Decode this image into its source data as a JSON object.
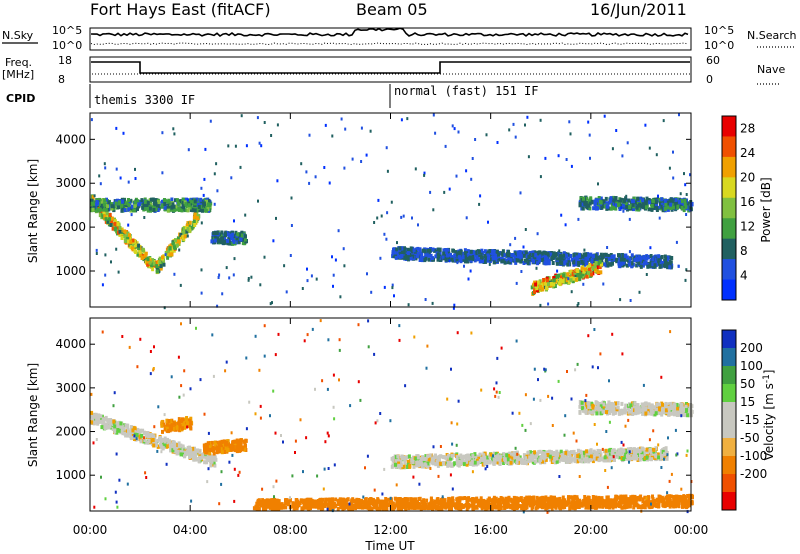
{
  "header": {
    "station": "Fort Hays East (fitACF)",
    "beam": "Beam 05",
    "date": "16/Jun/2011"
  },
  "top_panels": {
    "nsky_label": "N.Sky",
    "nsky_ticks": [
      "10^5",
      "10^0"
    ],
    "nsearch_label": "N.Search",
    "freq_label_line1": "Freq.",
    "freq_label_line2": "[MHz]",
    "freq_ticks": [
      "18",
      "8"
    ],
    "nave_label": "Nave",
    "nave_ticks": [
      "60",
      "0"
    ],
    "cpid_label": "CPID",
    "cpid_segments": [
      {
        "label": "themis 3300 IF",
        "start_hour": 0,
        "end_hour": 12
      },
      {
        "label": "normal (fast) 151 IF",
        "start_hour": 12,
        "end_hour": 24
      }
    ]
  },
  "chart_data": [
    {
      "type": "heatmap",
      "title": "",
      "xlabel": "Time UT",
      "ylabel": "Slant Range [km]",
      "xlim": [
        0,
        24
      ],
      "ylim": [
        180,
        4600
      ],
      "x_ticks": [
        "00:00",
        "04:00",
        "08:00",
        "12:00",
        "16:00",
        "20:00",
        "00:00"
      ],
      "y_ticks": [
        "1000",
        "2000",
        "3000",
        "4000"
      ],
      "colorbar": {
        "label": "Power [dB]",
        "ticks": [
          "28",
          "24",
          "20",
          "16",
          "12",
          "8",
          "4"
        ],
        "range": [
          0,
          30
        ],
        "colors": [
          "#0030ff",
          "#2050e0",
          "#206060",
          "#40a040",
          "#80c040",
          "#d8d820",
          "#f0a000",
          "#f05000",
          "#e80000"
        ]
      },
      "features": [
        {
          "name": "arc-descending",
          "from_hour": 0.0,
          "to_hour": 2.6,
          "range_km": [
            2600,
            1050
          ],
          "peak_db": 26
        },
        {
          "name": "arc-ascending",
          "from_hour": 2.6,
          "to_hour": 4.3,
          "range_km": [
            1050,
            2300
          ],
          "peak_db": 24
        },
        {
          "name": "upper-band-early",
          "from_hour": 0.0,
          "to_hour": 4.8,
          "range_km": [
            2500,
            2500
          ],
          "peak_db": 14
        },
        {
          "name": "mid-band",
          "from_hour": 4.8,
          "to_hour": 6.2,
          "range_km": [
            1750,
            1750
          ],
          "peak_db": 12
        },
        {
          "name": "night-band",
          "from_hour": 12.0,
          "to_hour": 23.2,
          "range_km": [
            1400,
            1200
          ],
          "peak_db": 10
        },
        {
          "name": "evening-enhancement",
          "from_hour": 17.6,
          "to_hour": 20.4,
          "range_km": [
            600,
            1100
          ],
          "peak_db": 28
        },
        {
          "name": "upper-band-late",
          "from_hour": 19.5,
          "to_hour": 24.0,
          "range_km": [
            2550,
            2500
          ],
          "peak_db": 12
        }
      ]
    },
    {
      "type": "heatmap",
      "title": "",
      "xlabel": "Time UT",
      "ylabel": "Slant Range [km]",
      "xlim": [
        0,
        24
      ],
      "ylim": [
        180,
        4600
      ],
      "x_ticks": [
        "00:00",
        "04:00",
        "08:00",
        "12:00",
        "16:00",
        "20:00",
        "00:00"
      ],
      "y_ticks": [
        "1000",
        "2000",
        "3000",
        "4000"
      ],
      "colorbar": {
        "label": "Velocity [m s^-1]",
        "ticks": [
          "200",
          "100",
          "50",
          "15",
          "-15",
          "-50",
          "-100",
          "-200"
        ],
        "range": [
          -250,
          250
        ],
        "colors": [
          "#e80000",
          "#f05000",
          "#f08000",
          "#f0b040",
          "#c8c8c0",
          "#c8c8c0",
          "#60d040",
          "#40a040",
          "#2070a0",
          "#1030c0"
        ]
      },
      "features": [
        {
          "name": "arc-ground-scatter",
          "from_hour": 0.0,
          "to_hour": 5.0,
          "range_km": [
            2300,
            1300
          ],
          "velocity": 0
        },
        {
          "name": "arc-flank-orange",
          "from_hour": 2.8,
          "to_hour": 4.0,
          "range_km": [
            2100,
            2200
          ],
          "velocity": -50
        },
        {
          "name": "mid-orange",
          "from_hour": 4.5,
          "to_hour": 6.2,
          "range_km": [
            1600,
            1700
          ],
          "velocity": -60
        },
        {
          "name": "night-ground-scatter",
          "from_hour": 12.0,
          "to_hour": 23.0,
          "range_km": [
            1300,
            1500
          ],
          "velocity": 0
        },
        {
          "name": "low-range-orange",
          "from_hour": 6.5,
          "to_hour": 24.0,
          "range_km": [
            300,
            400
          ],
          "velocity": -70
        },
        {
          "name": "upper-band-late",
          "from_hour": 19.5,
          "to_hour": 24.0,
          "range_km": [
            2550,
            2500
          ],
          "velocity": 0
        }
      ]
    }
  ]
}
